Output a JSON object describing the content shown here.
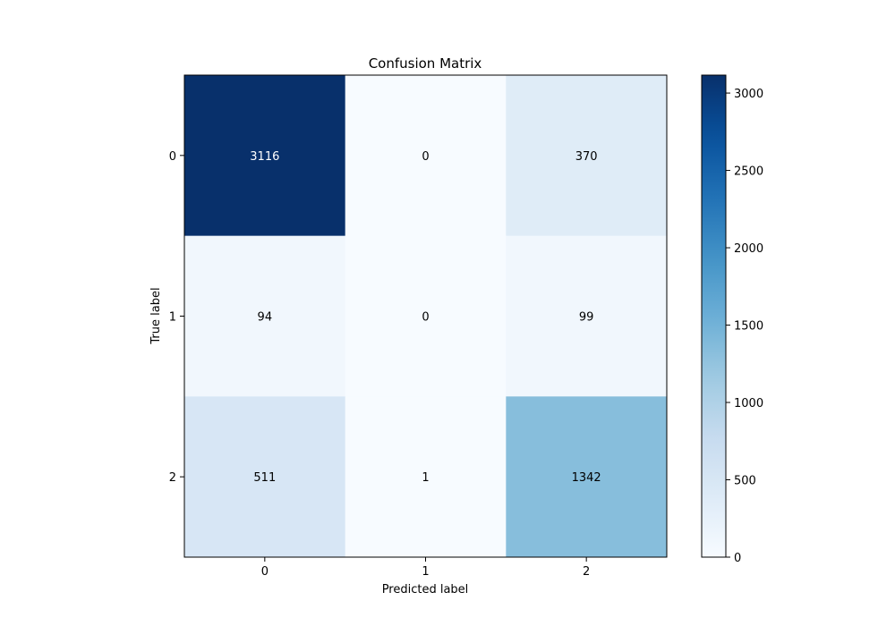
{
  "chart_data": {
    "type": "heatmap",
    "title": "Confusion Matrix",
    "xlabel": "Predicted label",
    "ylabel": "True label",
    "x_categories": [
      "0",
      "1",
      "2"
    ],
    "y_categories": [
      "0",
      "1",
      "2"
    ],
    "matrix": [
      [
        3116,
        0,
        370
      ],
      [
        94,
        0,
        99
      ],
      [
        511,
        1,
        1342
      ]
    ],
    "colormap": "Blues",
    "colorbar": {
      "range": [
        0,
        3116
      ],
      "ticks": [
        0,
        500,
        1000,
        1500,
        2000,
        2500,
        3000
      ]
    },
    "grid": false
  }
}
